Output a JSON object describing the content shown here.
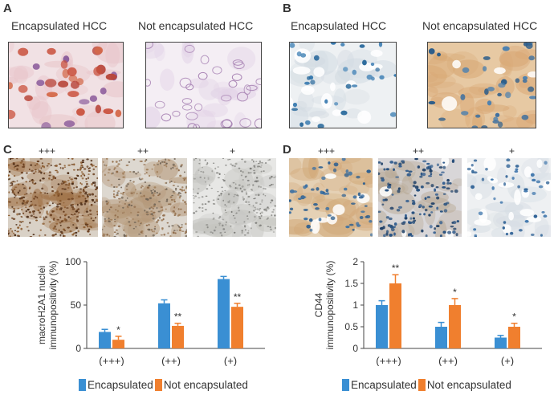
{
  "panels": {
    "A": {
      "letter": "A",
      "left_caption": "Encapsulated HCC",
      "right_caption": "Not encapsulated HCC"
    },
    "B": {
      "letter": "B",
      "left_caption": "Encapsulated HCC",
      "right_caption": "Not encapsulated HCC"
    },
    "C": {
      "letter": "C",
      "grades": [
        "+++",
        "++",
        "+"
      ]
    },
    "D": {
      "letter": "D",
      "grades": [
        "+++",
        "++",
        "+"
      ]
    }
  },
  "legend": {
    "encapsulated": "Encapsulated",
    "not_encapsulated": "Not encapsulated"
  },
  "colors": {
    "encapsulated": "#3a8fd3",
    "not_encapsulated": "#f07f2e"
  },
  "chart_data": [
    {
      "type": "bar",
      "ylabel": "macroH2A1 nuclei immunopositivity (%)",
      "ylabel_lines": [
        "macroH2A1 nuclei",
        "immunopositivity (%)"
      ],
      "categories": [
        "(+++)",
        "(++)",
        "(+)"
      ],
      "yticks": [
        "0",
        "50",
        "100"
      ],
      "ylim": [
        0,
        100
      ],
      "series": [
        {
          "name": "Encapsulated",
          "values": [
            19,
            52,
            80
          ],
          "errors": [
            3,
            4,
            3
          ]
        },
        {
          "name": "Not encapsulated",
          "values": [
            10,
            26,
            48
          ],
          "errors": [
            4,
            3,
            4
          ]
        }
      ],
      "annotations": [
        "*",
        "**",
        "**"
      ]
    },
    {
      "type": "bar",
      "ylabel": "CD44 immunopositivity (%)",
      "ylabel_lines": [
        "CD44",
        "immunopositivity (%)"
      ],
      "categories": [
        "(+++)",
        "(++)",
        "(+)"
      ],
      "yticks": [
        "0",
        "0.5",
        "1",
        "1.5",
        "2"
      ],
      "ylim": [
        0,
        2
      ],
      "series": [
        {
          "name": "Encapsulated",
          "values": [
            1.0,
            0.5,
            0.25
          ],
          "errors": [
            0.1,
            0.1,
            0.05
          ]
        },
        {
          "name": "Not encapsulated",
          "values": [
            1.5,
            1.0,
            0.5
          ],
          "errors": [
            0.2,
            0.15,
            0.08
          ]
        }
      ],
      "annotations": [
        "**",
        "*",
        "*"
      ]
    }
  ]
}
